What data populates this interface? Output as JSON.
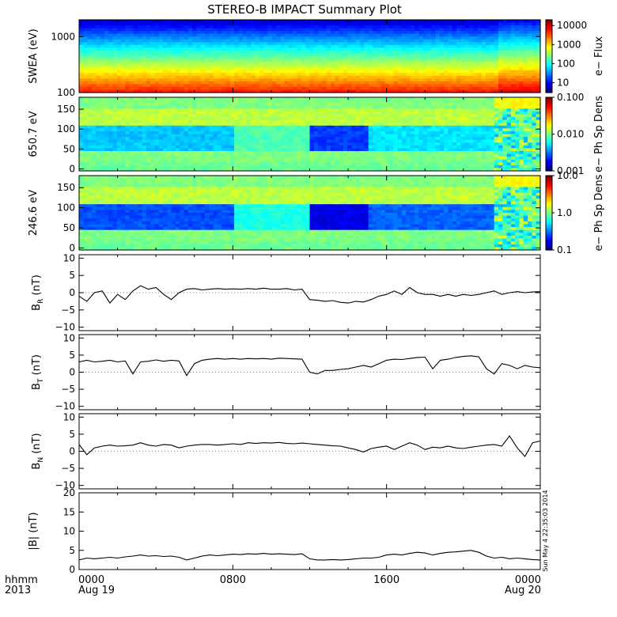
{
  "title": "STEREO-B IMPACT Summary Plot",
  "stamp": "Sun May  4 22:35:03 2014",
  "x_axis": {
    "row1_label": "hhmm",
    "row2_label": "2013",
    "ticks": [
      {
        "hour": 0,
        "top": "0000",
        "bottom": "Aug 19"
      },
      {
        "hour": 8,
        "top": "0800",
        "bottom": ""
      },
      {
        "hour": 16,
        "top": "1600",
        "bottom": ""
      },
      {
        "hour": 24,
        "top": "0000",
        "bottom": "Aug 20"
      }
    ],
    "minor_hours": [
      2,
      4,
      6,
      10,
      12,
      14,
      18,
      20,
      22
    ]
  },
  "chart_data": [
    {
      "type": "heatmap",
      "ylabel": "SWEA (eV)",
      "yscale": "log",
      "ylim": [
        100,
        2000
      ],
      "yticks": [
        {
          "v": 1000,
          "label": "1000"
        },
        {
          "v": 100,
          "label": "100"
        }
      ],
      "colorbar": {
        "label": "e− Flux",
        "scale": "log",
        "range": [
          3,
          20000
        ],
        "ticks": [
          {
            "v": 10000,
            "label": "10000"
          },
          {
            "v": 1000,
            "label": "1000"
          },
          {
            "v": 100,
            "label": "100"
          },
          {
            "v": 10,
            "label": "10"
          }
        ]
      }
    },
    {
      "type": "heatmap",
      "ylabel": "650.7 eV",
      "ylim": [
        -5,
        180
      ],
      "yticks": [
        {
          "v": 150,
          "label": "150"
        },
        {
          "v": 100,
          "label": "100"
        },
        {
          "v": 50,
          "label": "50"
        },
        {
          "v": 0,
          "label": "0"
        }
      ],
      "colorbar": {
        "label": "e− Ph Sp Dens",
        "scale": "log",
        "range": [
          0.001,
          0.1
        ],
        "ticks": [
          {
            "v": 0.1,
            "label": "0.100"
          },
          {
            "v": 0.01,
            "label": "0.010"
          },
          {
            "v": 0.001,
            "label": "0.001"
          }
        ]
      }
    },
    {
      "type": "heatmap",
      "ylabel": "246.6 eV",
      "ylim": [
        -5,
        180
      ],
      "yticks": [
        {
          "v": 150,
          "label": "150"
        },
        {
          "v": 100,
          "label": "100"
        },
        {
          "v": 50,
          "label": "50"
        },
        {
          "v": 0,
          "label": "0"
        }
      ],
      "colorbar": {
        "label": "e− Ph Sp Dens",
        "scale": "log",
        "range": [
          0.1,
          10
        ],
        "ticks": [
          {
            "v": 10,
            "label": "10.0"
          },
          {
            "v": 1,
            "label": "1.0"
          },
          {
            "v": 0.1,
            "label": "0.1"
          }
        ]
      }
    },
    {
      "type": "line",
      "ylabel_main": "B",
      "ylabel_sub": "R",
      "ylabel_unit": " (nT)",
      "ylim": [
        -11,
        11
      ],
      "yticks": [
        {
          "v": 10,
          "label": "10"
        },
        {
          "v": 5,
          "label": "5"
        },
        {
          "v": 0,
          "label": "0"
        },
        {
          "v": -5,
          "label": "−5"
        },
        {
          "v": -10,
          "label": "−10"
        }
      ],
      "x": [
        0,
        0.4,
        0.8,
        1.2,
        1.6,
        2,
        2.4,
        2.8,
        3.2,
        3.6,
        4,
        4.4,
        4.8,
        5.2,
        5.6,
        6,
        6.4,
        6.8,
        7.2,
        7.6,
        8,
        8.4,
        8.8,
        9.2,
        9.6,
        10,
        10.4,
        10.8,
        11.2,
        11.6,
        12,
        12.4,
        12.8,
        13.2,
        13.6,
        14,
        14.4,
        14.8,
        15.2,
        15.6,
        16,
        16.4,
        16.8,
        17.2,
        17.6,
        18,
        18.4,
        18.8,
        19.2,
        19.6,
        20,
        20.4,
        20.8,
        21.2,
        21.6,
        22,
        22.4,
        22.8,
        23.2,
        23.6,
        24
      ],
      "values": [
        -1,
        -2.5,
        0,
        0.5,
        -3,
        -0.5,
        -2,
        0.5,
        2,
        1,
        1.5,
        -0.5,
        -2,
        0,
        1,
        1.2,
        0.8,
        1,
        1.2,
        1,
        1.1,
        1,
        1.2,
        1,
        1.3,
        1,
        1,
        1.2,
        0.8,
        1,
        -2,
        -2.2,
        -2.5,
        -2.3,
        -2.8,
        -3,
        -2.5,
        -2.7,
        -2,
        -1,
        -0.5,
        0.5,
        -0.5,
        1.5,
        0,
        -0.5,
        -0.5,
        -1,
        -0.5,
        -1,
        -0.5,
        -0.8,
        -0.5,
        0,
        0.5,
        -0.5,
        0,
        0.3,
        0,
        0.2,
        0.3
      ]
    },
    {
      "type": "line",
      "ylabel_main": "B",
      "ylabel_sub": "T",
      "ylabel_unit": " (nT)",
      "ylim": [
        -11,
        11
      ],
      "yticks": [
        {
          "v": 10,
          "label": "10"
        },
        {
          "v": 5,
          "label": "5"
        },
        {
          "v": 0,
          "label": "0"
        },
        {
          "v": -5,
          "label": "−5"
        },
        {
          "v": -10,
          "label": "−10"
        }
      ],
      "x": [
        0,
        0.4,
        0.8,
        1.2,
        1.6,
        2,
        2.4,
        2.8,
        3.2,
        3.6,
        4,
        4.4,
        4.8,
        5.2,
        5.6,
        6,
        6.4,
        6.8,
        7.2,
        7.6,
        8,
        8.4,
        8.8,
        9.2,
        9.6,
        10,
        10.4,
        10.8,
        11.2,
        11.6,
        12,
        12.4,
        12.8,
        13.2,
        13.6,
        14,
        14.4,
        14.8,
        15.2,
        15.6,
        16,
        16.4,
        16.8,
        17.2,
        17.6,
        18,
        18.4,
        18.8,
        19.2,
        19.6,
        20,
        20.4,
        20.8,
        21.2,
        21.6,
        22,
        22.4,
        22.8,
        23.2,
        23.6,
        24
      ],
      "values": [
        3,
        3.5,
        3,
        3.2,
        3.5,
        3,
        3.3,
        -0.5,
        3,
        3.2,
        3.6,
        3.2,
        3.5,
        3.3,
        -1,
        2.5,
        3.5,
        3.8,
        4,
        3.8,
        4,
        3.8,
        4,
        3.9,
        4,
        3.8,
        4.1,
        4,
        3.9,
        3.8,
        0,
        -0.5,
        0.5,
        0.5,
        0.8,
        1,
        1.5,
        2,
        1.5,
        2.5,
        3.5,
        3.8,
        3.7,
        4,
        4.3,
        4.4,
        1,
        3.5,
        3.8,
        4.3,
        4.6,
        4.8,
        4.5,
        1,
        -0.5,
        2.5,
        2,
        1,
        2,
        1.5,
        1.3
      ]
    },
    {
      "type": "line",
      "ylabel_main": "B",
      "ylabel_sub": "N",
      "ylabel_unit": " (nT)",
      "ylim": [
        -11,
        11
      ],
      "yticks": [
        {
          "v": 10,
          "label": "10"
        },
        {
          "v": 5,
          "label": "5"
        },
        {
          "v": 0,
          "label": "0"
        },
        {
          "v": -5,
          "label": "−5"
        },
        {
          "v": -10,
          "label": "−10"
        }
      ],
      "x": [
        0,
        0.4,
        0.8,
        1.2,
        1.6,
        2,
        2.4,
        2.8,
        3.2,
        3.6,
        4,
        4.4,
        4.8,
        5.2,
        5.6,
        6,
        6.4,
        6.8,
        7.2,
        7.6,
        8,
        8.4,
        8.8,
        9.2,
        9.6,
        10,
        10.4,
        10.8,
        11.2,
        11.6,
        12,
        12.4,
        12.8,
        13.2,
        13.6,
        14,
        14.4,
        14.8,
        15.2,
        15.6,
        16,
        16.4,
        16.8,
        17.2,
        17.6,
        18,
        18.4,
        18.8,
        19.2,
        19.6,
        20,
        20.4,
        20.8,
        21.2,
        21.6,
        22,
        22.4,
        22.8,
        23.2,
        23.6,
        24
      ],
      "values": [
        2,
        -1,
        1,
        1.5,
        1.8,
        1.5,
        1.6,
        1.8,
        2.5,
        1.8,
        1.5,
        2,
        1.8,
        1,
        1.5,
        1.8,
        2,
        2,
        1.8,
        2,
        2.2,
        2,
        2.5,
        2.3,
        2.5,
        2.4,
        2.6,
        2.3,
        2.2,
        2.4,
        2.2,
        2,
        1.8,
        1.6,
        1.5,
        1,
        0.5,
        -0.2,
        0.8,
        1.2,
        1.5,
        0.5,
        1.5,
        2.5,
        1.8,
        0.5,
        1.2,
        1,
        1.5,
        1,
        0.8,
        1.2,
        1.5,
        1.8,
        2,
        1.5,
        4.5,
        1,
        -1.5,
        2.5,
        3
      ]
    },
    {
      "type": "line",
      "ylabel": "|B| (nT)",
      "ylim": [
        0,
        20
      ],
      "yticks": [
        {
          "v": 20,
          "label": "20"
        },
        {
          "v": 15,
          "label": "15"
        },
        {
          "v": 10,
          "label": "10"
        },
        {
          "v": 5,
          "label": "5"
        },
        {
          "v": 0,
          "label": "0"
        }
      ],
      "x": [
        0,
        0.4,
        0.8,
        1.2,
        1.6,
        2,
        2.4,
        2.8,
        3.2,
        3.6,
        4,
        4.4,
        4.8,
        5.2,
        5.6,
        6,
        6.4,
        6.8,
        7.2,
        7.6,
        8,
        8.4,
        8.8,
        9.2,
        9.6,
        10,
        10.4,
        10.8,
        11.2,
        11.6,
        12,
        12.4,
        12.8,
        13.2,
        13.6,
        14,
        14.4,
        14.8,
        15.2,
        15.6,
        16,
        16.4,
        16.8,
        17.2,
        17.6,
        18,
        18.4,
        18.8,
        19.2,
        19.6,
        20,
        20.4,
        20.8,
        21.2,
        21.6,
        22,
        22.4,
        22.8,
        23.2,
        23.6,
        24
      ],
      "values": [
        2.5,
        3,
        2.8,
        3,
        3.2,
        3,
        3.3,
        3.5,
        3.8,
        3.5,
        3.6,
        3.4,
        3.5,
        3.2,
        2.5,
        3,
        3.5,
        3.8,
        3.6,
        3.8,
        4,
        3.9,
        4.1,
        4,
        4.2,
        4,
        4.1,
        4,
        3.9,
        4.1,
        2.8,
        2.5,
        2.5,
        2.6,
        2.5,
        2.6,
        2.8,
        3,
        3,
        3.2,
        3.8,
        4,
        3.8,
        4.2,
        4.5,
        4.3,
        3.8,
        4.2,
        4.5,
        4.6,
        4.8,
        5,
        4.5,
        3.5,
        3,
        3.2,
        2.8,
        3,
        2.8,
        2.6,
        2.5
      ]
    }
  ]
}
